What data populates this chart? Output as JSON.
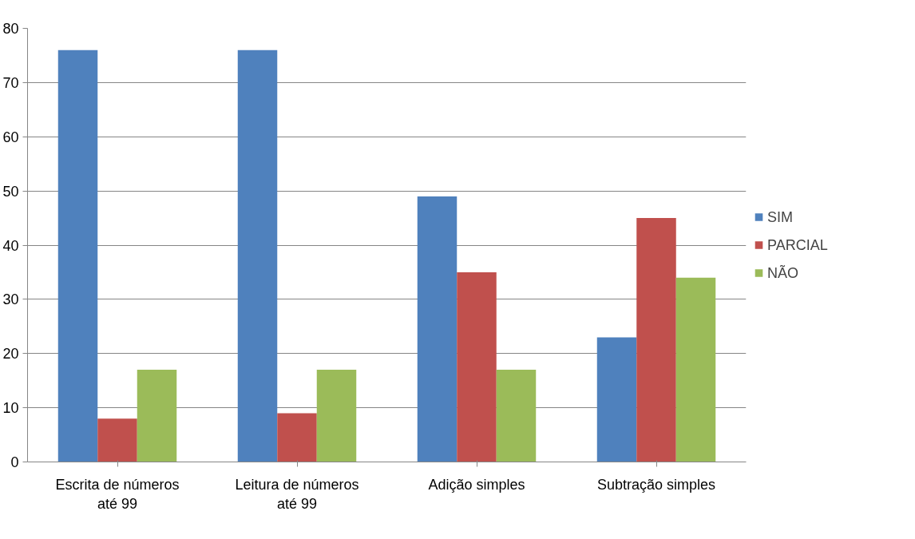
{
  "chart_data": {
    "type": "bar",
    "categories": [
      "Escrita de números até 99",
      "Leitura de números até 99",
      "Adição simples",
      "Subtração simples"
    ],
    "series": [
      {
        "name": "SIM",
        "color": "#4f81bd",
        "values": [
          76,
          76,
          49,
          23
        ]
      },
      {
        "name": "PARCIAL",
        "color": "#c0504d",
        "values": [
          8,
          9,
          35,
          45
        ]
      },
      {
        "name": "NÃO",
        "color": "#9bbb59",
        "values": [
          17,
          17,
          17,
          34
        ]
      }
    ],
    "ylim": [
      0,
      80
    ],
    "yticks": [
      0,
      10,
      20,
      30,
      40,
      50,
      60,
      70,
      80
    ],
    "grid": "y",
    "legend": "right"
  }
}
